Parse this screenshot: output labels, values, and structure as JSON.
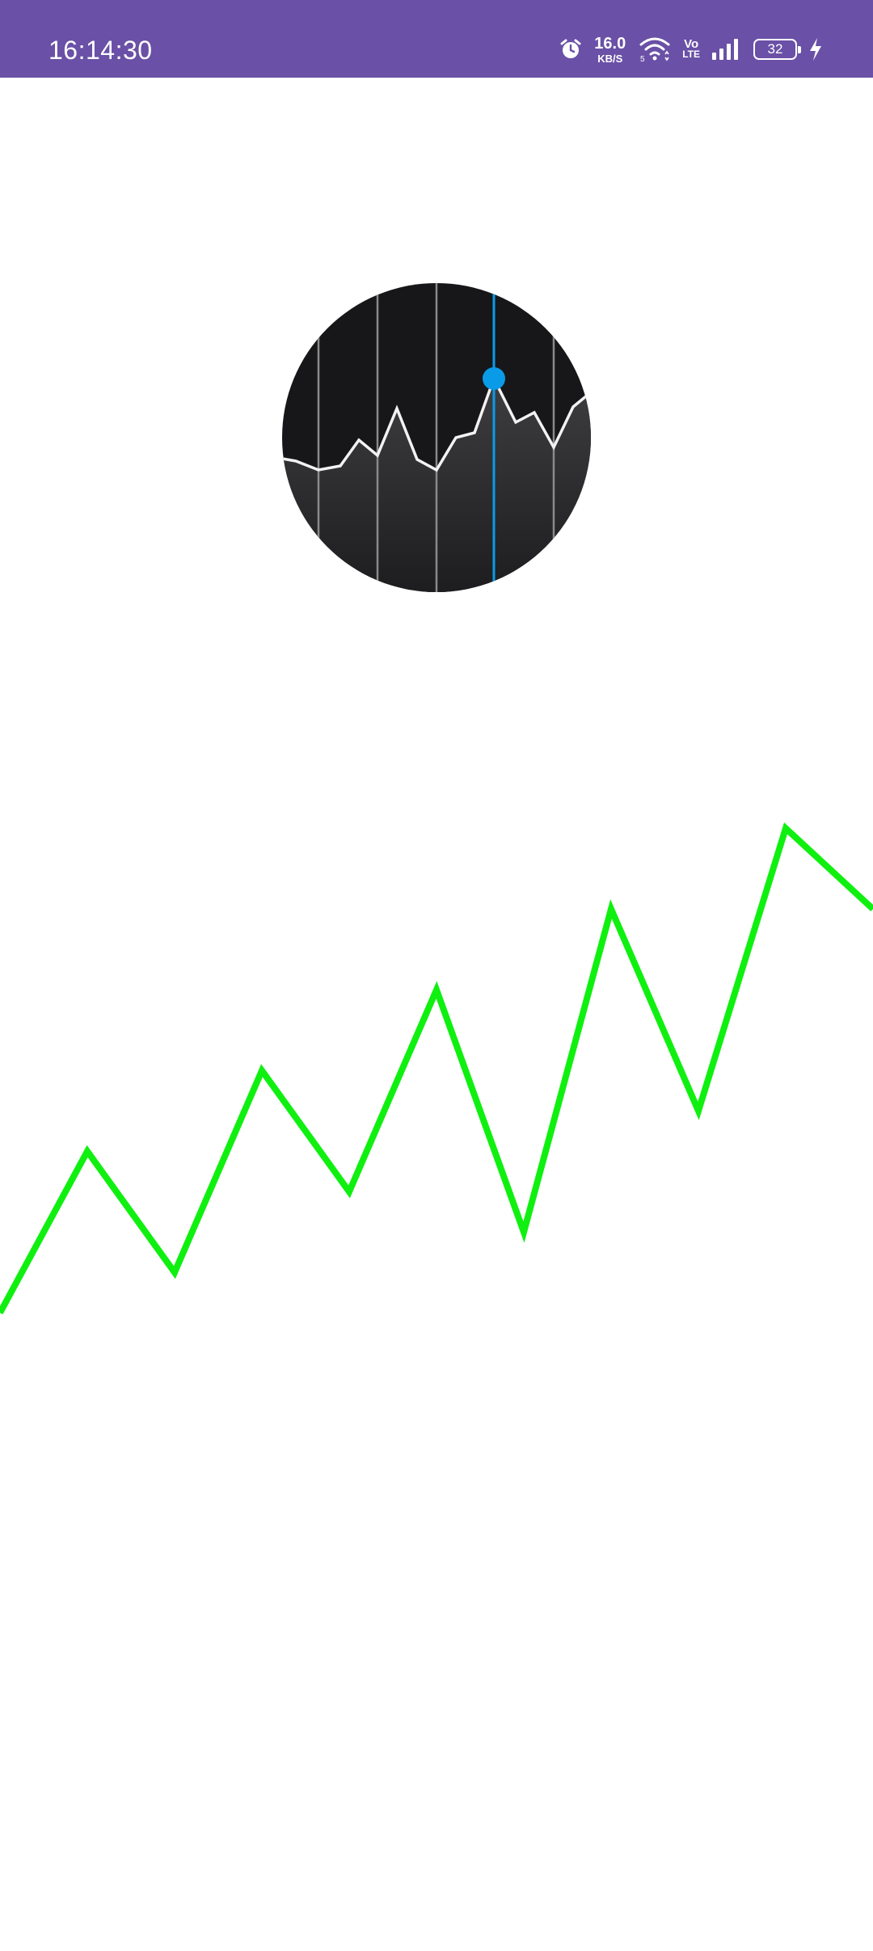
{
  "status_bar": {
    "time": "16:14:30",
    "net_speed_value": "16.0",
    "net_speed_unit": "KB/S",
    "volte_top": "Vo",
    "volte_bottom": "LTE",
    "battery_level": "32",
    "icons": [
      "alarm-icon",
      "wifi-icon",
      "volte-icon",
      "signal-icon",
      "battery-icon",
      "charging-icon"
    ],
    "background_color": "#6a50a6"
  },
  "logo": {
    "icon": "stock-chart-circle-icon",
    "highlight_color": "#0a9be8",
    "background_color": "#17171a"
  },
  "chart_data": {
    "type": "line",
    "x": [
      0,
      1,
      2,
      3,
      4,
      5,
      6,
      7,
      8,
      9,
      10
    ],
    "values": [
      0,
      2,
      0.5,
      3,
      1.5,
      4,
      1,
      5,
      2.5,
      6,
      5
    ],
    "color": "#10f010",
    "grid": false,
    "axes": false
  }
}
